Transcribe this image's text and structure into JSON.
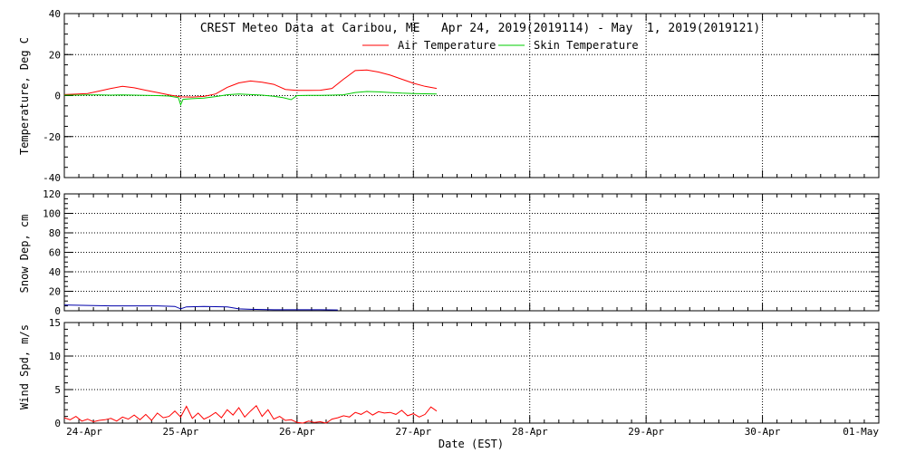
{
  "chart_data": [
    {
      "panel": "temperature",
      "type": "line",
      "title": "CREST Meteo Data at Caribou, ME   Apr 24, 2019(2019114) - May  1, 2019(2019121)",
      "ylabel": "Temperature, Deg C",
      "ylim": [
        -40,
        40
      ],
      "yticks": [
        -40,
        -20,
        0,
        20,
        40
      ],
      "xlim": [
        0,
        7
      ],
      "grid": true,
      "legend": "top-center",
      "series": [
        {
          "name": "Air Temperature",
          "color": "#ff0000",
          "x": [
            0,
            0.1,
            0.2,
            0.3,
            0.4,
            0.5,
            0.6,
            0.7,
            0.8,
            0.9,
            1.0,
            1.1,
            1.2,
            1.3,
            1.4,
            1.5,
            1.6,
            1.7,
            1.8,
            1.9,
            2.0,
            2.1,
            2.2,
            2.3,
            2.4,
            2.5,
            2.6,
            2.7,
            2.8,
            2.9,
            3.0,
            3.1,
            3.2
          ],
          "y": [
            0.5,
            0.7,
            1.0,
            2.2,
            3.5,
            4.5,
            3.8,
            2.6,
            1.5,
            0.3,
            -0.6,
            -0.7,
            -0.4,
            0.8,
            4.0,
            6.2,
            7.1,
            6.5,
            5.5,
            3.0,
            2.5,
            2.5,
            2.6,
            3.5,
            8.0,
            12.2,
            12.5,
            11.5,
            10.0,
            8.0,
            6.0,
            4.5,
            3.5
          ]
        },
        {
          "name": "Skin Temperature",
          "color": "#00cc00",
          "x": [
            0,
            0.1,
            0.2,
            0.3,
            0.4,
            0.5,
            0.6,
            0.7,
            0.8,
            0.9,
            0.98,
            1.0,
            1.02,
            1.1,
            1.2,
            1.3,
            1.4,
            1.5,
            1.6,
            1.7,
            1.8,
            1.88,
            1.95,
            2.0,
            2.1,
            2.2,
            2.3,
            2.4,
            2.5,
            2.6,
            2.7,
            2.8,
            2.9,
            3.0,
            3.1,
            3.2
          ],
          "y": [
            0.2,
            0.2,
            0.3,
            0.3,
            0.2,
            0.3,
            0.2,
            0.1,
            0.0,
            -0.2,
            -1.0,
            -4.5,
            -1.8,
            -1.5,
            -1.2,
            -0.5,
            0.4,
            0.8,
            0.5,
            0.2,
            -0.3,
            -1.0,
            -2.0,
            0.0,
            0.1,
            0.1,
            0.2,
            0.4,
            1.5,
            2.0,
            1.8,
            1.5,
            1.2,
            1.0,
            0.9,
            0.8
          ]
        }
      ]
    },
    {
      "panel": "snow",
      "type": "line",
      "ylabel": "Snow Dep, cm",
      "ylim": [
        0,
        120
      ],
      "yticks": [
        0,
        20,
        40,
        60,
        80,
        100,
        120
      ],
      "xlim": [
        0,
        7
      ],
      "grid": true,
      "series": [
        {
          "color": "#0000aa",
          "x": [
            0,
            0.2,
            0.4,
            0.6,
            0.8,
            0.95,
            1.0,
            1.05,
            1.2,
            1.4,
            1.5,
            1.6,
            1.8,
            2.0,
            2.2,
            2.35
          ],
          "y": [
            6,
            5.5,
            5,
            5,
            5,
            4.5,
            2,
            4,
            4.5,
            4,
            2,
            1.5,
            1,
            1,
            1,
            0.8
          ]
        }
      ]
    },
    {
      "panel": "wind",
      "type": "line",
      "ylabel": "Wind Spd, m/s",
      "ylim": [
        0,
        15
      ],
      "yticks": [
        0,
        5,
        10,
        15
      ],
      "xlim": [
        0,
        7
      ],
      "grid": true,
      "series": [
        {
          "color": "#ff0000",
          "x": [
            0,
            0.05,
            0.1,
            0.15,
            0.2,
            0.25,
            0.3,
            0.35,
            0.4,
            0.45,
            0.5,
            0.55,
            0.6,
            0.65,
            0.7,
            0.75,
            0.8,
            0.85,
            0.9,
            0.95,
            1.0,
            1.05,
            1.1,
            1.15,
            1.2,
            1.25,
            1.3,
            1.35,
            1.4,
            1.45,
            1.5,
            1.55,
            1.6,
            1.65,
            1.7,
            1.75,
            1.8,
            1.85,
            1.9,
            1.95,
            2.0,
            2.05,
            2.1,
            2.15,
            2.2,
            2.25,
            2.3,
            2.35,
            2.4,
            2.45,
            2.5,
            2.55,
            2.6,
            2.65,
            2.7,
            2.75,
            2.8,
            2.85,
            2.9,
            2.95,
            3.0,
            3.05,
            3.1,
            3.15,
            3.2
          ],
          "y": [
            0.8,
            0.5,
            1.0,
            0.3,
            0.6,
            0.2,
            0.4,
            0.5,
            0.7,
            0.3,
            0.9,
            0.6,
            1.2,
            0.5,
            1.3,
            0.4,
            1.5,
            0.8,
            1.0,
            1.8,
            0.9,
            2.5,
            0.7,
            1.5,
            0.6,
            1.0,
            1.6,
            0.8,
            2.0,
            1.2,
            2.3,
            0.9,
            1.8,
            2.6,
            1.0,
            2.0,
            0.6,
            1.0,
            0.4,
            0.5,
            0.1,
            0.0,
            0.3,
            0.1,
            0.2,
            0.0,
            0.6,
            0.8,
            1.1,
            0.9,
            1.6,
            1.3,
            1.8,
            1.2,
            1.7,
            1.5,
            1.6,
            1.3,
            1.9,
            1.1,
            1.4,
            0.9,
            1.3,
            2.4,
            1.8
          ]
        }
      ]
    }
  ],
  "x_axis": {
    "tick_labels": [
      "24-Apr",
      "25-Apr",
      "26-Apr",
      "27-Apr",
      "28-Apr",
      "29-Apr",
      "30-Apr",
      "01-May"
    ],
    "label": "Date (EST)"
  }
}
